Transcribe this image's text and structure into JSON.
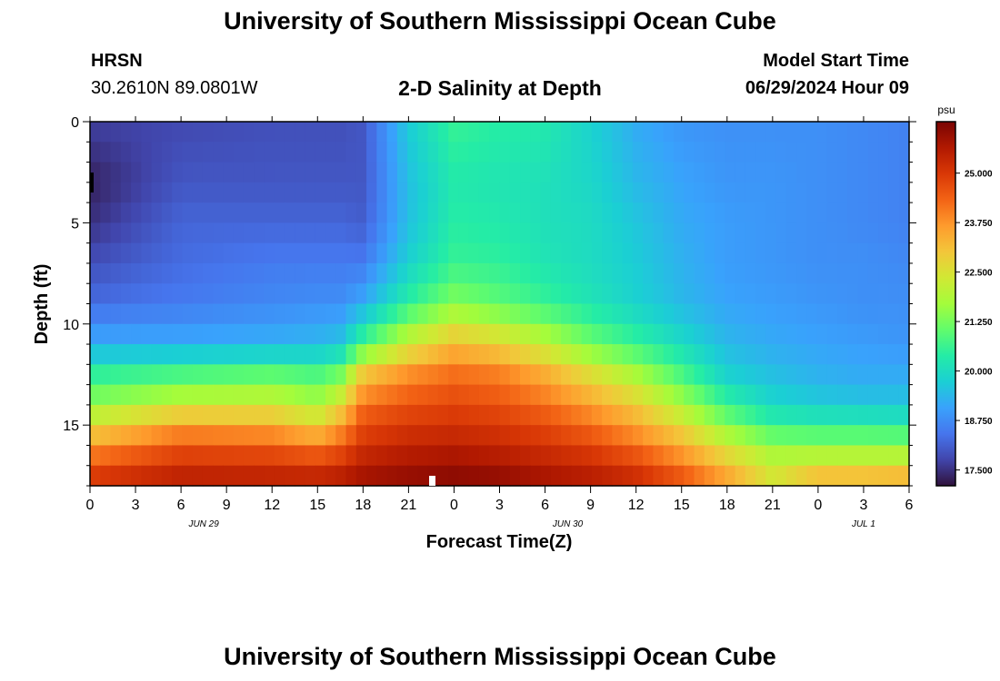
{
  "header": {
    "title": "University of Southern Mississippi Ocean Cube",
    "station_code": "HRSN",
    "station_coords": "30.2610N  89.0801W",
    "plot_title": "2-D Salinity at Depth",
    "start_label": "Model Start Time",
    "start_value": "06/29/2024 Hour 09"
  },
  "footer": {
    "title": "University of Southern Mississippi Ocean Cube"
  },
  "chart_data": {
    "type": "heatmap",
    "title": "2-D Salinity at Depth",
    "xlabel": "Forecast Time(Z)",
    "ylabel": "Depth (ft)",
    "x_tick_labels": [
      "0",
      "3",
      "6",
      "9",
      "12",
      "15",
      "18",
      "21",
      "0",
      "3",
      "6",
      "9",
      "12",
      "15",
      "18",
      "21",
      "0",
      "3",
      "6"
    ],
    "x_date_labels": [
      {
        "label": "JUN 29",
        "at_tick": 2.5
      },
      {
        "label": "JUN 30",
        "at_tick": 10.5
      },
      {
        "label": "JUL 1",
        "at_tick": 17
      }
    ],
    "y_ticks": [
      0,
      5,
      10,
      15
    ],
    "ylim": [
      0,
      18
    ],
    "xlim_hours": [
      0,
      54
    ],
    "colorbar": {
      "unit": "psu",
      "labels": [
        "25.000",
        "23.750",
        "22.500",
        "21.250",
        "20.000",
        "18.750",
        "17.500"
      ],
      "range": [
        17.1,
        26.3
      ],
      "stops": [
        "#30123b",
        "#4145ab",
        "#4675ed",
        "#39a2fc",
        "#1bcfd4",
        "#24eca6",
        "#61fc6c",
        "#a4fc3b",
        "#d1e834",
        "#f3c63a",
        "#fe9b2d",
        "#f36315",
        "#d93806",
        "#b11901",
        "#7a0403"
      ]
    },
    "hours": [
      0,
      6,
      12,
      15,
      16.5,
      18,
      21,
      24,
      27,
      30,
      33,
      36,
      39,
      42,
      45,
      48,
      51,
      54
    ],
    "depths": [
      0,
      3,
      5,
      7,
      9,
      11,
      12.5,
      14,
      15,
      16,
      17,
      18
    ],
    "values": [
      [
        17.7,
        17.8,
        17.9,
        17.9,
        17.9,
        18.0,
        19.7,
        20.6,
        20.4,
        20.3,
        19.8,
        19.2,
        18.9,
        18.8,
        18.8,
        18.8,
        18.7,
        18.6
      ],
      [
        17.3,
        18.0,
        18.0,
        18.0,
        18.0,
        18.0,
        19.5,
        20.3,
        20.2,
        20.1,
        19.9,
        19.4,
        19.1,
        18.9,
        18.9,
        18.8,
        18.7,
        18.6
      ],
      [
        17.5,
        18.2,
        18.2,
        18.2,
        18.2,
        18.1,
        19.5,
        20.4,
        20.3,
        20.1,
        20.0,
        19.6,
        19.2,
        19.0,
        18.9,
        18.8,
        18.7,
        18.6
      ],
      [
        17.9,
        18.3,
        18.5,
        18.5,
        18.5,
        18.5,
        19.8,
        20.6,
        20.5,
        20.2,
        20.0,
        19.7,
        19.3,
        19.0,
        18.9,
        18.8,
        18.8,
        18.7
      ],
      [
        18.3,
        18.5,
        18.7,
        18.8,
        18.8,
        19.2,
        20.5,
        21.4,
        21.0,
        20.6,
        20.2,
        19.8,
        19.4,
        19.1,
        19.0,
        18.9,
        18.8,
        18.8
      ],
      [
        19.2,
        19.2,
        19.3,
        19.4,
        19.6,
        20.8,
        22.3,
        23.2,
        22.8,
        22.1,
        21.2,
        20.6,
        20.0,
        19.4,
        19.2,
        19.1,
        19.0,
        18.9
      ],
      [
        20.5,
        20.8,
        21.0,
        20.8,
        21.2,
        23.0,
        23.8,
        24.2,
        24.0,
        23.4,
        22.6,
        21.8,
        20.8,
        19.8,
        19.5,
        19.3,
        19.2,
        19.2
      ],
      [
        21.5,
        22.2,
        22.3,
        21.8,
        22.6,
        24.2,
        24.6,
        24.8,
        24.6,
        24.2,
        23.6,
        22.9,
        21.8,
        20.6,
        19.9,
        19.7,
        19.6,
        19.6
      ],
      [
        22.6,
        23.6,
        23.4,
        22.8,
        23.6,
        24.7,
        25.0,
        25.1,
        25.0,
        24.7,
        24.2,
        23.5,
        22.6,
        21.4,
        20.6,
        20.5,
        20.5,
        20.4
      ],
      [
        23.6,
        24.5,
        24.4,
        24.0,
        24.4,
        25.1,
        25.4,
        25.5,
        25.3,
        25.1,
        24.8,
        24.2,
        23.4,
        22.3,
        21.5,
        21.4,
        21.4,
        21.4
      ],
      [
        24.6,
        25.2,
        25.1,
        25.0,
        25.2,
        25.6,
        25.8,
        25.9,
        25.8,
        25.5,
        25.3,
        24.9,
        24.1,
        23.1,
        22.2,
        22.5,
        22.5,
        22.5
      ],
      [
        25.2,
        25.6,
        25.6,
        25.6,
        25.7,
        25.9,
        26.1,
        26.2,
        26.1,
        25.9,
        25.7,
        25.4,
        24.8,
        23.8,
        22.5,
        23.6,
        23.6,
        23.8
      ]
    ]
  }
}
